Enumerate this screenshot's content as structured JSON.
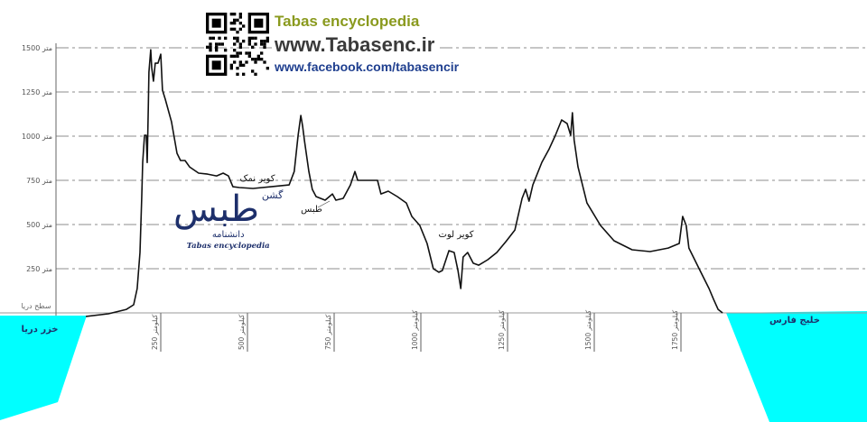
{
  "header": {
    "title": "Tabas encyclopedia",
    "website": "www.Tabasenc.ir",
    "facebook": "www.facebook.com/tabasencir",
    "qr_icon": "qr-code-icon"
  },
  "logo": {
    "text_fa_main": "طبس",
    "text_fa_small": "گشن",
    "text_fa_sub": "دانشنامه",
    "text_en": "Tabas encyclopedia"
  },
  "colors": {
    "sea": "#00ffff",
    "line": "#111111",
    "grid": "#8c8c8c",
    "title_green": "#8a9a1e",
    "link_blue": "#1f3f8f"
  },
  "chart_data": {
    "type": "line",
    "title": "",
    "xlabel": "",
    "ylabel": "",
    "y_unit": "متر",
    "x_unit": "کیلومتر",
    "sea_level_label": "سطح دریا",
    "ylim": [
      0,
      1500
    ],
    "yticks": [
      250,
      500,
      750,
      1000,
      1250,
      1500
    ],
    "xticks": [
      250,
      500,
      750,
      1000,
      1250,
      1500,
      1750
    ],
    "xtick_labels": [
      "250",
      "500",
      "750",
      "1000",
      "1250",
      "1500",
      "1750"
    ],
    "grid": true,
    "sea_left_label": "خزر دریا",
    "sea_right_label": "خلیج فارس",
    "annotations": [
      {
        "text": "کویر نمک",
        "x": 560,
        "y": 760
      },
      {
        "text": "طبس",
        "x": 680,
        "y": 580
      },
      {
        "text": "کویر لوت",
        "x": 1100,
        "y": 430
      }
    ],
    "series": [
      {
        "x": [
          34,
          99,
          151,
          172,
          182,
          190,
          195,
          198,
          203,
          208,
          211,
          214,
          216,
          221,
          224,
          229,
          234,
          242,
          250,
          255,
          263,
          281,
          297,
          307,
          320,
          333,
          359,
          385,
          411,
          430,
          445,
          458,
          477,
          516,
          568,
          620,
          635,
          646,
          654,
          659,
          664,
          677,
          687,
          698,
          724,
          745,
          755,
          776,
          797,
          810,
          818,
          854,
          875,
          885,
          906,
          932,
          958,
          974,
          997,
          1018,
          1036,
          1052,
          1062,
          1081,
          1096,
          1107,
          1115,
          1122,
          1135,
          1151,
          1167,
          1193,
          1219,
          1245,
          1271,
          1292,
          1302,
          1312,
          1323,
          1349,
          1370,
          1388,
          1406,
          1422,
          1432,
          1437,
          1442,
          1453,
          1479,
          1518,
          1557,
          1609,
          1661,
          1713,
          1745,
          1755,
          1765,
          1773,
          1805,
          1831,
          1844,
          1857,
          1870
        ],
        "y": [
          -20,
          -5,
          20,
          46,
          138,
          342,
          648,
          852,
          1005,
          1005,
          851,
          1158,
          1362,
          1489,
          1387,
          1311,
          1413,
          1413,
          1464,
          1260,
          1209,
          1081,
          903,
          862,
          862,
          826,
          791,
          785,
          775,
          791,
          775,
          714,
          709,
          704,
          714,
          724,
          800,
          1005,
          1117,
          1056,
          979,
          800,
          699,
          658,
          638,
          673,
          638,
          648,
          724,
          800,
          750,
          750,
          750,
          673,
          689,
          658,
          622,
          546,
          495,
          393,
          250,
          230,
          240,
          352,
          342,
          240,
          138,
          316,
          342,
          281,
          270,
          301,
          342,
          403,
          469,
          648,
          699,
          632,
          724,
          852,
          928,
          1005,
          1092,
          1071,
          1005,
          1132,
          979,
          826,
          622,
          495,
          408,
          357,
          347,
          367,
          393,
          546,
          495,
          367,
          240,
          138,
          77,
          20,
          0
        ]
      }
    ]
  }
}
